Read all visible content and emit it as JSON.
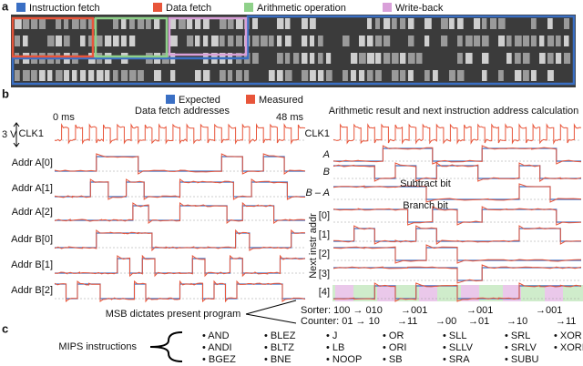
{
  "panel_a": {
    "label": "a",
    "legend": [
      "Instruction fetch",
      "Data fetch",
      "Arithmetic operation",
      "Write-back"
    ]
  },
  "panel_b": {
    "label": "b",
    "legend": [
      "Expected",
      "Measured"
    ],
    "left": {
      "title": "Data fetch addresses",
      "time_start": "0 ms",
      "time_end": "48 ms",
      "scale": "3 V",
      "rows": [
        "CLK1",
        "Addr A[0]",
        "Addr A[1]",
        "Addr A[2]",
        "Addr B[0]",
        "Addr B[1]",
        "Addr B[2]"
      ],
      "note": "MSB dictates present program"
    },
    "right": {
      "title": "Arithmetic result and next instruction address calculation",
      "rows": [
        "CLK1",
        "A",
        "B",
        "B – A",
        "[0]",
        "[1]",
        "[2]",
        "[3]",
        "[4]"
      ],
      "subtract": "Subtract bit",
      "branch": "Branch bit",
      "axis": "Next instr addr",
      "sorter": [
        "Sorter: 100 → 010",
        "→001",
        "→001",
        "→001"
      ],
      "counter": [
        "Counter: 01 → 10",
        "→11",
        "→00",
        "→01",
        "→10",
        "→11"
      ]
    }
  },
  "panel_c": {
    "label": "c",
    "title": "MIPS instructions",
    "columns": [
      [
        "AND",
        "ANDI",
        "BGEZ"
      ],
      [
        "BLEZ",
        "BLTZ",
        "BNE"
      ],
      [
        "J",
        "LB",
        "NOOP"
      ],
      [
        "OR",
        "ORI",
        "SB"
      ],
      [
        "SLL",
        "SLLV",
        "SRA"
      ],
      [
        "SRL",
        "SRLV",
        "SUBU"
      ],
      [
        "XOR",
        "XORI"
      ]
    ]
  }
}
